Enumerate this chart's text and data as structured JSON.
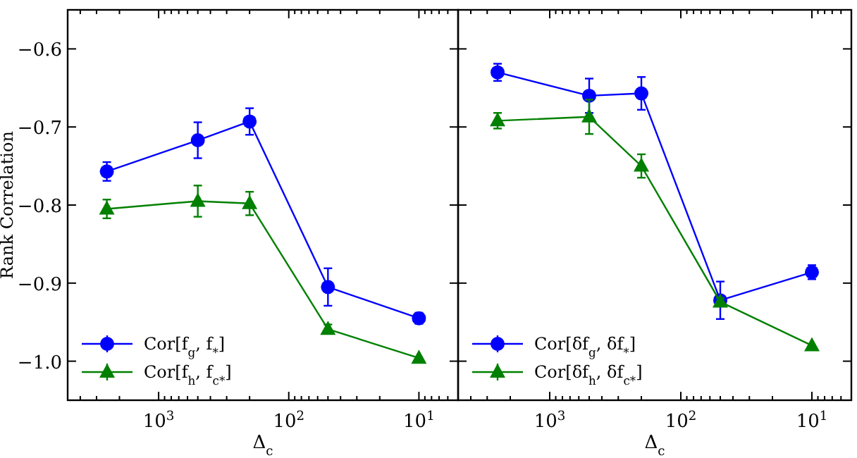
{
  "chart_data": [
    {
      "type": "line",
      "xlabel": "Δ$_{c}$",
      "ylabel": "Rank Correlation",
      "log": "x",
      "xlim": [
        5000,
        5
      ],
      "ylim": [
        -1.05,
        -0.55
      ],
      "xticks": [
        {
          "value": 1000,
          "label": "10$^{3}$"
        },
        {
          "value": 100,
          "label": "10$^{2}$"
        },
        {
          "value": 10,
          "label": "10$^{1}$"
        },
        {
          "value": 5000,
          "label": null
        },
        {
          "value": 4000,
          "label": null
        },
        {
          "value": 3000,
          "label": null
        },
        {
          "value": 2000,
          "label": null
        },
        {
          "value": 900,
          "label": null
        },
        {
          "value": 800,
          "label": null
        },
        {
          "value": 700,
          "label": null
        },
        {
          "value": 600,
          "label": null
        },
        {
          "value": 500,
          "label": null
        },
        {
          "value": 400,
          "label": null
        },
        {
          "value": 300,
          "label": null
        },
        {
          "value": 200,
          "label": null
        },
        {
          "value": 90,
          "label": null
        },
        {
          "value": 80,
          "label": null
        },
        {
          "value": 70,
          "label": null
        },
        {
          "value": 60,
          "label": null
        },
        {
          "value": 50,
          "label": null
        },
        {
          "value": 40,
          "label": null
        },
        {
          "value": 30,
          "label": null
        },
        {
          "value": 20,
          "label": null
        },
        {
          "value": 9,
          "label": null
        },
        {
          "value": 8,
          "label": null
        },
        {
          "value": 7,
          "label": null
        },
        {
          "value": 6,
          "label": null
        }
      ],
      "yticks": [
        {
          "value": -0.6,
          "label": "−0.6"
        },
        {
          "value": -0.7,
          "label": "−0.7"
        },
        {
          "value": -0.8,
          "label": "−0.8"
        },
        {
          "value": -0.9,
          "label": "−0.9"
        },
        {
          "value": -1.0,
          "label": "−1.0"
        }
      ],
      "grid": false,
      "legend": "bottom left",
      "line_style": "solid",
      "x": [
        2500,
        500,
        200,
        50,
        10
      ],
      "series": [
        {
          "name": "Cor[f$_{g}$, f$_{*}$]",
          "color": "#0000ff",
          "marker": "circle",
          "values": [
            -0.757,
            -0.717,
            -0.693,
            -0.905,
            -0.945
          ],
          "errors": [
            0.012,
            0.023,
            0.017,
            0.024,
            0.007
          ]
        },
        {
          "name": "Cor[f$_{h}$, f$_{c*}$]",
          "color": "#008000",
          "marker": "triangle",
          "values": [
            -0.805,
            -0.795,
            -0.798,
            -0.959,
            -0.996
          ],
          "errors": [
            0.012,
            0.02,
            0.015,
            0.006,
            null
          ]
        }
      ]
    },
    {
      "type": "line",
      "xlabel": "Δ$_{c}$",
      "log": "x",
      "xlim": [
        5000,
        5
      ],
      "ylim": [
        -1.05,
        -0.55
      ],
      "tick_labels": "x",
      "yticks": [
        {
          "value": -0.6,
          "label": null
        },
        {
          "value": -0.7,
          "label": null
        },
        {
          "value": -0.8,
          "label": null
        },
        {
          "value": -0.9,
          "label": null
        },
        {
          "value": -1.0,
          "label": null
        }
      ],
      "xticks": [
        {
          "value": 1000,
          "label": "10$^{3}$"
        },
        {
          "value": 100,
          "label": "10$^{2}$"
        },
        {
          "value": 10,
          "label": "10$^{1}$"
        },
        {
          "value": 5000,
          "label": null
        },
        {
          "value": 4000,
          "label": null
        },
        {
          "value": 3000,
          "label": null
        },
        {
          "value": 2000,
          "label": null
        },
        {
          "value": 900,
          "label": null
        },
        {
          "value": 800,
          "label": null
        },
        {
          "value": 700,
          "label": null
        },
        {
          "value": 600,
          "label": null
        },
        {
          "value": 500,
          "label": null
        },
        {
          "value": 400,
          "label": null
        },
        {
          "value": 300,
          "label": null
        },
        {
          "value": 200,
          "label": null
        },
        {
          "value": 90,
          "label": null
        },
        {
          "value": 80,
          "label": null
        },
        {
          "value": 70,
          "label": null
        },
        {
          "value": 60,
          "label": null
        },
        {
          "value": 50,
          "label": null
        },
        {
          "value": 40,
          "label": null
        },
        {
          "value": 30,
          "label": null
        },
        {
          "value": 20,
          "label": null
        },
        {
          "value": 9,
          "label": null
        },
        {
          "value": 8,
          "label": null
        },
        {
          "value": 7,
          "label": null
        },
        {
          "value": 6,
          "label": null
        }
      ],
      "grid": false,
      "legend": "bottom left",
      "line_style": "solid",
      "x": [
        2500,
        500,
        200,
        50,
        10
      ],
      "series": [
        {
          "name": "Cor[δf$_{g}$, δf$_{*}$]",
          "color": "#0000ff",
          "marker": "circle",
          "values": [
            -0.63,
            -0.66,
            -0.657,
            -0.922,
            -0.886
          ],
          "errors": [
            0.011,
            0.022,
            0.021,
            0.024,
            0.009
          ]
        },
        {
          "name": "Cor[δf$_{h}$, δf$_{c*}$]",
          "color": "#008000",
          "marker": "triangle",
          "values": [
            -0.692,
            -0.687,
            -0.75,
            -0.924,
            -0.98
          ],
          "errors": [
            0.01,
            0.022,
            0.015,
            0.005,
            null
          ]
        }
      ]
    }
  ]
}
